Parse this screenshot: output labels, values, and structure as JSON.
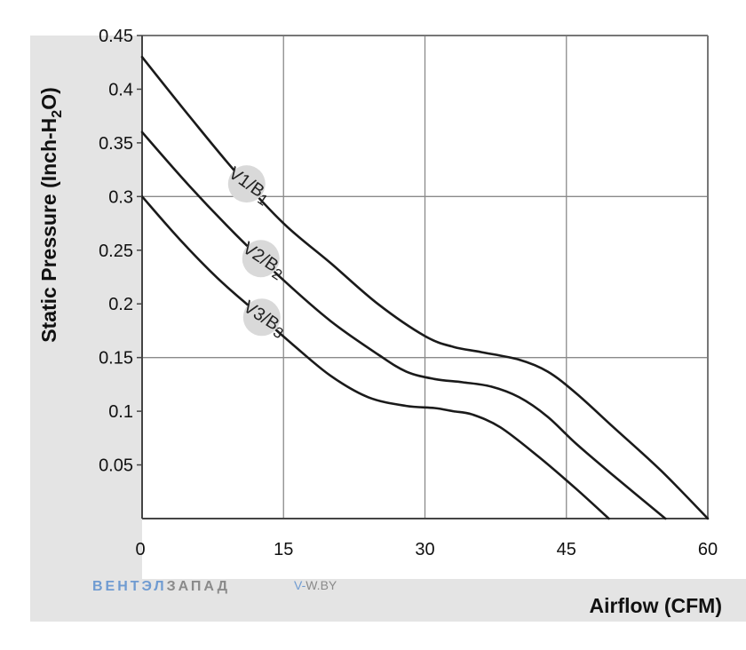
{
  "chart_data": {
    "type": "line",
    "xlabel": "Airflow (CFM)",
    "ylabel": "Static Pressure (Inch-H2O)",
    "ylabel_parts": {
      "before": "Static Pressure (Inch-H",
      "sub": "2",
      "after": "O)"
    },
    "xlim": [
      0,
      60
    ],
    "ylim": [
      0,
      0.45
    ],
    "x_ticks": [
      "0",
      "15",
      "30",
      "45",
      "60"
    ],
    "y_ticks": [
      "0.45",
      "0.4",
      "0.35",
      "0.3",
      "0.25",
      "0.2",
      "0.15",
      "0.1",
      "0.05"
    ],
    "grid": true,
    "series": [
      {
        "name": "V1/B1",
        "label_parts": {
          "main": "V1/B",
          "sub": "1"
        },
        "color": "#1a1a1a",
        "x": [
          0,
          5,
          10,
          15,
          20,
          25,
          30,
          33,
          36,
          40,
          43,
          46,
          50,
          55,
          60
        ],
        "y": [
          0.43,
          0.375,
          0.322,
          0.275,
          0.238,
          0.2,
          0.17,
          0.16,
          0.155,
          0.148,
          0.137,
          0.117,
          0.085,
          0.045,
          0.0
        ]
      },
      {
        "name": "V2/B2",
        "label_parts": {
          "main": "V2/B",
          "sub": "2"
        },
        "color": "#1a1a1a",
        "x": [
          0,
          5,
          10,
          15,
          20,
          25,
          28,
          31,
          34,
          37,
          40,
          43,
          46,
          50,
          55.5
        ],
        "y": [
          0.36,
          0.31,
          0.264,
          0.222,
          0.184,
          0.153,
          0.137,
          0.13,
          0.127,
          0.123,
          0.113,
          0.095,
          0.07,
          0.04,
          0.0
        ]
      },
      {
        "name": "V3/B3",
        "label_parts": {
          "main": "V3/B",
          "sub": "3"
        },
        "color": "#1a1a1a",
        "x": [
          0,
          4,
          8,
          12,
          16,
          20,
          24,
          28,
          31,
          33,
          35,
          38,
          42,
          46,
          49.5
        ],
        "y": [
          0.3,
          0.26,
          0.224,
          0.193,
          0.162,
          0.133,
          0.113,
          0.105,
          0.103,
          0.1,
          0.097,
          0.085,
          0.058,
          0.028,
          0.0
        ]
      }
    ]
  },
  "watermark": {
    "brand_blue": "ВЕНТЭЛ",
    "brand_gray": "ЗАПАД",
    "site_prefix": "V-",
    "site_rest": "W.BY",
    "blue_color": "#6f9bd1",
    "gray_color": "#8a8a8a"
  },
  "colors": {
    "axis_panel": "#e4e4e4",
    "grid": "#8a8a8a",
    "frame": "#777777",
    "label_badge": "#d9d9d9"
  }
}
